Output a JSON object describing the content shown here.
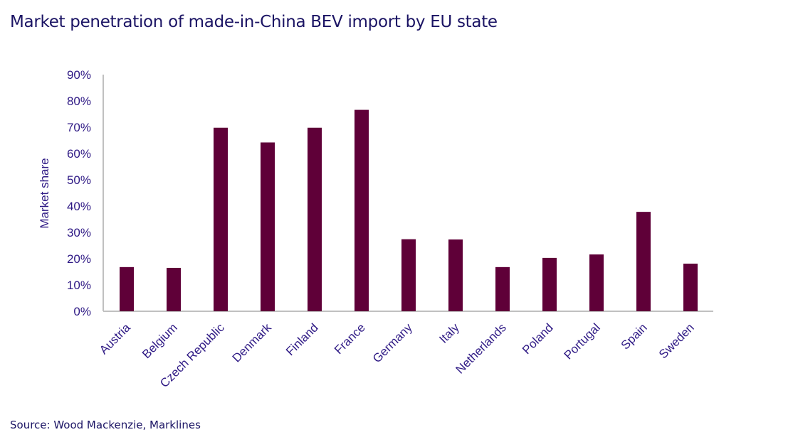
{
  "title": "Market penetration of made-in-China BEV import by EU state",
  "source": "Source: Wood Mackenzie, Marklines",
  "colors": {
    "bar": "#5f0038",
    "text": "#2f1a85",
    "axis": "#c0c0c0"
  },
  "chart_data": {
    "type": "bar",
    "title": "Market penetration of made-in-China BEV import by EU state",
    "xlabel": "",
    "ylabel": "Market share",
    "ylim": [
      0,
      90
    ],
    "yticks": [
      "0%",
      "10%",
      "20%",
      "30%",
      "40%",
      "50%",
      "60%",
      "70%",
      "80%",
      "90%"
    ],
    "grid": false,
    "categories": [
      "Austria",
      "Belgium",
      "Czech Republic",
      "Denmark",
      "Finland",
      "France",
      "Germany",
      "Italy",
      "Netherlands",
      "Poland",
      "Portugal",
      "Spain",
      "Sweden"
    ],
    "values": [
      16.8,
      16.5,
      69.8,
      64.2,
      69.8,
      76.6,
      27.4,
      27.3,
      16.8,
      20.3,
      21.6,
      37.8,
      18.1
    ]
  }
}
